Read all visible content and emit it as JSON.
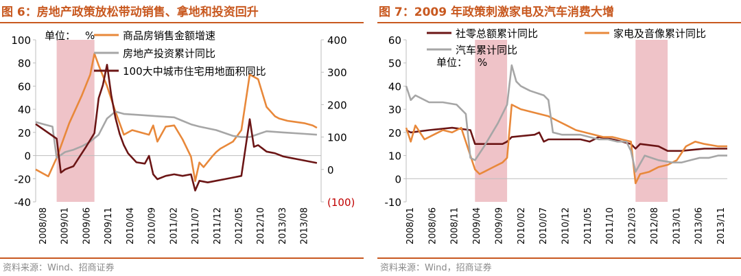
{
  "left": {
    "title": "图 6：房地产政策放松带动销售、拿地和投资回升",
    "source": "资料来源：Wind、招商证券",
    "chart_data": {
      "type": "line",
      "unit_label": "单位：",
      "unit_symbol": "%",
      "left_axis": {
        "min": -40,
        "max": 100,
        "ticks": [
          "100",
          "80",
          "60",
          "40",
          "20",
          "0",
          "-20",
          "-40"
        ]
      },
      "right_axis": {
        "min": -100,
        "max": 400,
        "ticks": [
          "400",
          "300",
          "200",
          "100",
          "0",
          "(100)"
        ],
        "neg_color": "#c00000"
      },
      "x_range": [
        0,
        68
      ],
      "x_tick_labels": [
        "2008/08",
        "2009/01",
        "2009/06",
        "2009/11",
        "2010/04",
        "2010/09",
        "2011/02",
        "2011/07",
        "2011/12",
        "2012/05",
        "2012/10",
        "2013/03",
        "2013/08"
      ],
      "shaded": [
        [
          5,
          14
        ]
      ],
      "shade_color": "#efc3c8",
      "series": [
        {
          "name": "商品房销售金额增速",
          "axis": "left",
          "color": "#e8883a",
          "x": [
            0,
            3,
            5,
            8,
            11,
            13,
            14,
            15,
            17,
            19,
            21,
            23,
            25,
            27,
            28,
            29,
            31,
            33,
            35,
            37,
            38,
            39,
            40,
            42,
            43,
            44,
            45,
            47,
            49,
            51,
            53,
            55,
            56,
            57,
            58,
            60,
            62,
            64,
            66,
            67
          ],
          "y": [
            -12,
            -18,
            -2,
            28,
            52,
            70,
            88,
            78,
            60,
            38,
            18,
            22,
            20,
            18,
            26,
            12,
            25,
            26,
            14,
            -1,
            -22,
            -6,
            -10,
            -1,
            3,
            6,
            8,
            12,
            22,
            70,
            66,
            42,
            38,
            34,
            32,
            30,
            29,
            28,
            26,
            24
          ]
        },
        {
          "name": "房地产投资累计同比",
          "axis": "left",
          "color": "#a6a6a6",
          "x": [
            0,
            2,
            4,
            5,
            7,
            9,
            11,
            13,
            15,
            17,
            19,
            21,
            25,
            29,
            33,
            35,
            37,
            39,
            43,
            47,
            49,
            51,
            55,
            59,
            63,
            67
          ],
          "y": [
            29,
            27,
            25,
            -2,
            3,
            5,
            8,
            12,
            18,
            32,
            38,
            36,
            35,
            34,
            33,
            30,
            27,
            25,
            22,
            17,
            16,
            16,
            21,
            20,
            19,
            18
          ]
        },
        {
          "name": "100大中城市住宅用地面积同比",
          "axis": "right",
          "color": "#6b1515",
          "x": [
            0,
            5,
            6,
            7,
            8,
            9,
            10,
            12,
            14,
            15,
            16,
            17,
            18,
            19,
            20,
            21,
            22,
            24,
            26,
            27,
            28,
            29,
            31,
            33,
            35,
            37,
            38,
            39,
            41,
            43,
            45,
            47,
            49,
            51,
            52,
            53,
            55,
            57,
            59,
            61,
            63,
            65,
            67
          ],
          "y": [
            140,
            95,
            -10,
            0,
            5,
            10,
            30,
            70,
            112,
            220,
            260,
            323,
            230,
            160,
            110,
            75,
            50,
            22,
            18,
            42,
            -15,
            -30,
            -20,
            -15,
            -20,
            -15,
            -65,
            -35,
            -40,
            -35,
            -30,
            -25,
            -20,
            155,
            70,
            75,
            55,
            50,
            40,
            35,
            30,
            25,
            20
          ]
        }
      ]
    }
  },
  "right": {
    "title": "图 7：2009 年政策刺激家电及汽车消费大增",
    "source": "资料来源：Wind，招商证券",
    "chart_data": {
      "type": "line",
      "unit_label": "单位：",
      "unit_symbol": "%",
      "y_axis": {
        "min": -10,
        "max": 60,
        "ticks": [
          "60",
          "50",
          "40",
          "30",
          "20",
          "10",
          "0",
          "-10"
        ]
      },
      "x_range": [
        0,
        70
      ],
      "x_tick_labels": [
        "2008/01",
        "2008/06",
        "2008/11",
        "2009/04",
        "2009/09",
        "2010/02",
        "2010/07",
        "2010/12",
        "2011/05",
        "2011/10",
        "2012/03",
        "2012/08",
        "2013/01",
        "2013/06",
        "2013/11"
      ],
      "shaded": [
        [
          15,
          22
        ],
        [
          50,
          57
        ]
      ],
      "shade_color": "#efc3c8",
      "series": [
        {
          "name": "社零总额累计同比",
          "color": "#6b1515",
          "x": [
            0,
            1,
            5,
            10,
            14,
            15,
            16,
            21,
            22,
            23,
            28,
            29,
            30,
            31,
            35,
            38,
            40,
            42,
            45,
            47,
            49,
            50,
            51,
            55,
            57,
            60,
            65,
            70
          ],
          "y": [
            21,
            20,
            21,
            22,
            21,
            15,
            15,
            15,
            16,
            18,
            19,
            20,
            16,
            17,
            17,
            17,
            16,
            18,
            17,
            16,
            15,
            13,
            15,
            14,
            12,
            12,
            13,
            13
          ]
        },
        {
          "name": "家电及音像累计同比",
          "color": "#e8883a",
          "x": [
            0,
            1,
            2,
            4,
            6,
            8,
            10,
            12,
            14,
            15,
            16,
            17,
            19,
            21,
            22,
            23,
            25,
            27,
            29,
            31,
            33,
            35,
            37,
            39,
            41,
            43,
            45,
            47,
            49,
            50,
            51,
            53,
            55,
            57,
            59,
            61,
            63,
            65,
            68,
            70
          ],
          "y": [
            22,
            16,
            23,
            17,
            19,
            21,
            20,
            22,
            10,
            4,
            2,
            3,
            5,
            7,
            9,
            32,
            30,
            29,
            28,
            27,
            25,
            23,
            21,
            20,
            19,
            18,
            18,
            17,
            16,
            -2,
            2,
            3,
            5,
            6,
            8,
            14,
            16,
            15,
            14,
            14
          ]
        },
        {
          "name": "汽车累计同比",
          "color": "#a6a6a6",
          "x": [
            0,
            1,
            2,
            5,
            8,
            11,
            13,
            14,
            15,
            17,
            20,
            22,
            23,
            24,
            25,
            27,
            30,
            31,
            32,
            34,
            36,
            38,
            40,
            42,
            44,
            46,
            48,
            49,
            50,
            52,
            55,
            58,
            60,
            62,
            64,
            66,
            68,
            70
          ],
          "y": [
            40,
            34,
            36,
            33,
            33,
            32,
            28,
            9,
            8,
            14,
            24,
            32,
            49,
            42,
            40,
            38,
            36,
            34,
            20,
            19,
            19,
            19,
            18,
            17,
            17,
            16,
            16,
            12,
            3,
            10,
            8,
            7,
            7,
            8,
            9,
            9,
            10,
            10
          ]
        }
      ]
    }
  }
}
